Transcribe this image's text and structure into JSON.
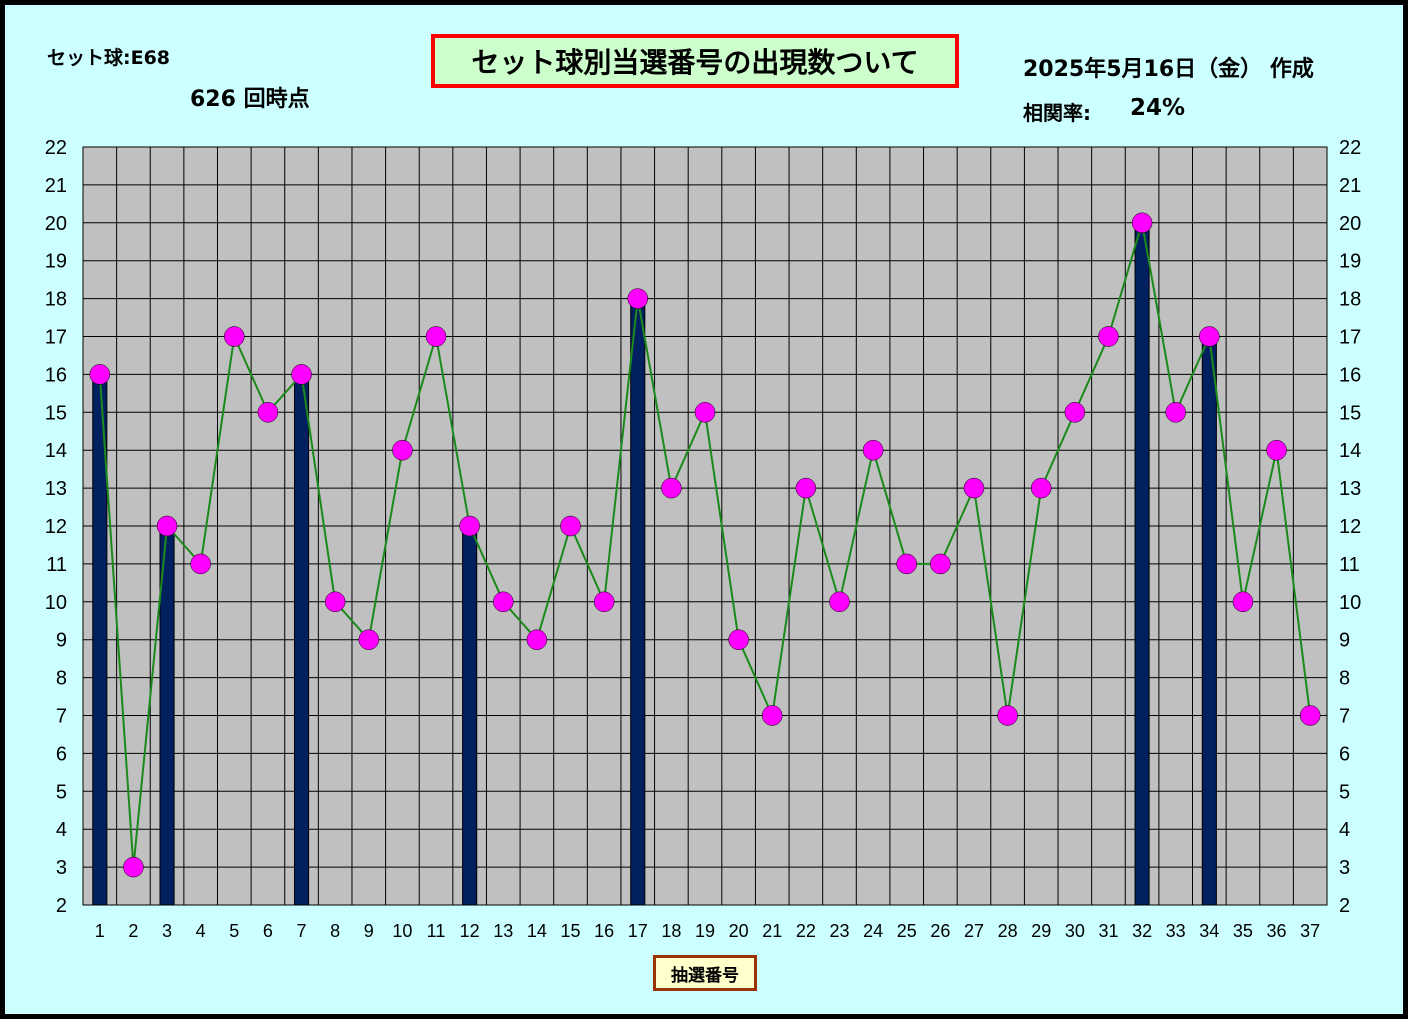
{
  "header": {
    "set_ball": "セット球:E68",
    "draw_count": "626 回時点",
    "title": "セット球別当選番号の出現数ついて",
    "date": "2025年5月16日（金） 作成",
    "correlation_label": "相関率:",
    "correlation_value": "24%"
  },
  "colors": {
    "background": "#ccffff",
    "plot_area": "#c0c0c0",
    "bar": "#002060",
    "line": "#1a8a1a",
    "marker": "#ff00ff",
    "title_border": "#ff0000",
    "title_fill": "#ccffcc"
  },
  "chart_data": {
    "type": "bar",
    "xlabel": "抽選番号",
    "ylim": [
      2,
      22
    ],
    "y_ticks": [
      2,
      3,
      4,
      5,
      6,
      7,
      8,
      9,
      10,
      11,
      12,
      13,
      14,
      15,
      16,
      17,
      18,
      19,
      20,
      21,
      22
    ],
    "categories": [
      "1",
      "2",
      "3",
      "4",
      "5",
      "6",
      "7",
      "8",
      "9",
      "10",
      "11",
      "12",
      "13",
      "14",
      "15",
      "16",
      "17",
      "18",
      "19",
      "20",
      "21",
      "22",
      "23",
      "24",
      "25",
      "26",
      "27",
      "28",
      "29",
      "30",
      "31",
      "32",
      "33",
      "34",
      "35",
      "36",
      "37"
    ],
    "series": [
      {
        "type": "line",
        "values": [
          16,
          3,
          12,
          11,
          17,
          15,
          16,
          10,
          9,
          14,
          17,
          12,
          10,
          9,
          12,
          10,
          18,
          13,
          15,
          9,
          7,
          13,
          10,
          14,
          11,
          11,
          13,
          7,
          13,
          15,
          17,
          20,
          15,
          17,
          10,
          14,
          7
        ]
      },
      {
        "type": "bar",
        "values": [
          16,
          null,
          12,
          null,
          null,
          null,
          16,
          null,
          null,
          null,
          null,
          12,
          null,
          null,
          null,
          null,
          18,
          null,
          null,
          null,
          null,
          null,
          null,
          null,
          null,
          null,
          null,
          null,
          null,
          null,
          null,
          20,
          null,
          17,
          null,
          null,
          null
        ]
      }
    ],
    "grid": true
  }
}
